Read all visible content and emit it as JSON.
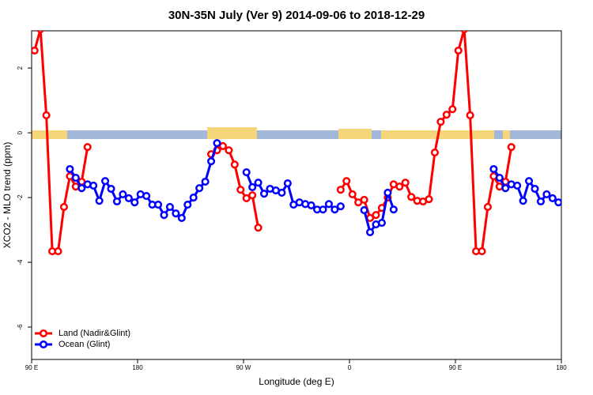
{
  "chart_data": {
    "type": "line",
    "title": "30N-35N July (Ver 9)   2014-09-06 to 2018-12-29",
    "x_label": "Longitude (deg E)",
    "y_label": "XCO2 - MLO trend (ppm)",
    "xlim": [
      90,
      540
    ],
    "ylim": [
      -7,
      3.15
    ],
    "xticks": [
      {
        "value": 90,
        "label": "90 E"
      },
      180,
      {
        "value": 270,
        "label": "90 W"
      },
      {
        "value": 360,
        "label": "0"
      },
      {
        "value": 450,
        "label": "90 E"
      },
      {
        "value": 540,
        "label": "180"
      }
    ],
    "yticks": [
      -6,
      -4,
      -2,
      0,
      2
    ],
    "legend": "bottomleft",
    "x": [
      92.5,
      97.5,
      102.5,
      107.5,
      112.5,
      117.5,
      122.5,
      127.5,
      132.5,
      137.5,
      142.5,
      147.5,
      152.5,
      157.5,
      162.5,
      167.5,
      172.5,
      177.5,
      182.5,
      187.5,
      192.5,
      197.5,
      202.5,
      207.5,
      212.5,
      217.5,
      222.5,
      227.5,
      232.5,
      237.5,
      242.5,
      247.5,
      252.5,
      257.5,
      262.5,
      267.5,
      272.5,
      277.5,
      282.5,
      287.5,
      292.5,
      297.5,
      302.5,
      307.5,
      312.5,
      317.5,
      322.5,
      327.5,
      332.5,
      337.5,
      342.5,
      347.5,
      352.5,
      357.5,
      362.5,
      367.5,
      372.5,
      377.5,
      382.5,
      387.5,
      392.5,
      397.5,
      402.5,
      407.5,
      412.5,
      417.5,
      422.5,
      427.5,
      432.5,
      437.5,
      442.5,
      447.5,
      452.5,
      457.5,
      462.5,
      467.5,
      472.5,
      477.5,
      482.5,
      487.5,
      492.5,
      497.5,
      502.5,
      507.5,
      512.5,
      517.5,
      522.5,
      527.5,
      532.5,
      537.5
    ],
    "series": [
      {
        "name": "Land (Nadir&Glint)",
        "color": "#ff0000",
        "values": [
          2.54,
          3.2,
          0.54,
          -3.66,
          -3.66,
          -2.29,
          -1.34,
          -1.66,
          -1.51,
          -0.44,
          null,
          null,
          null,
          null,
          null,
          null,
          null,
          null,
          null,
          null,
          null,
          null,
          null,
          null,
          null,
          null,
          null,
          null,
          null,
          null,
          -0.66,
          -0.54,
          -0.41,
          -0.54,
          -0.98,
          -1.76,
          -2.02,
          -1.93,
          -2.93,
          null,
          null,
          null,
          null,
          null,
          null,
          null,
          null,
          null,
          null,
          null,
          null,
          null,
          -1.76,
          -1.49,
          -1.9,
          -2.15,
          -2.07,
          -2.63,
          -2.54,
          -2.32,
          -2.0,
          -1.59,
          -1.66,
          -1.54,
          -1.98,
          -2.1,
          -2.12,
          -2.05,
          -0.61,
          0.34,
          0.56,
          0.73,
          2.54,
          3.2,
          0.54,
          -3.66,
          -3.66,
          -2.29,
          -1.34,
          -1.66,
          -1.51,
          -0.44,
          null,
          null,
          null,
          null,
          null,
          null,
          null,
          null
        ]
      },
      {
        "name": "Ocean (Glint)",
        "color": "#0000ff",
        "values": [
          null,
          null,
          null,
          null,
          null,
          null,
          -1.12,
          -1.39,
          -1.71,
          -1.59,
          -1.63,
          -2.1,
          -1.49,
          -1.73,
          -2.12,
          -1.9,
          -2.02,
          -2.15,
          -1.9,
          -1.95,
          -2.22,
          -2.22,
          -2.54,
          -2.29,
          -2.49,
          -2.63,
          -2.22,
          -2.0,
          -1.71,
          -1.51,
          -0.88,
          -0.32,
          null,
          null,
          null,
          null,
          -1.22,
          -1.68,
          -1.54,
          -1.88,
          -1.73,
          -1.78,
          -1.85,
          -1.56,
          -2.22,
          -2.15,
          -2.2,
          -2.24,
          -2.37,
          -2.37,
          -2.2,
          -2.37,
          -2.27,
          null,
          null,
          null,
          -2.39,
          -3.07,
          -2.83,
          -2.78,
          -1.85,
          -2.37,
          null,
          null,
          null,
          null,
          null,
          null,
          null,
          null,
          null,
          null,
          null,
          null,
          null,
          null,
          null,
          null,
          -1.12,
          -1.39,
          -1.71,
          -1.59,
          -1.63,
          -2.1,
          -1.49,
          -1.73,
          -2.12,
          -1.9,
          -2.02,
          -2.15
        ]
      }
    ]
  }
}
